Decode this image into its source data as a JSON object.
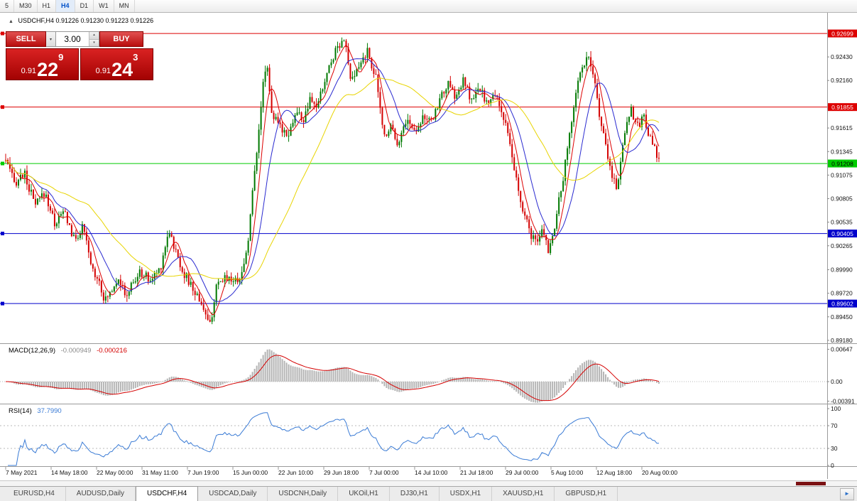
{
  "icons": {
    "chart_icon": "▲",
    "chevron_down": "▾",
    "chevron_up": "▴",
    "tab_scroll_right": "►"
  },
  "toolbar": {
    "timeframes": [
      {
        "label": "5",
        "active": false
      },
      {
        "label": "M30",
        "active": false
      },
      {
        "label": "H1",
        "active": false
      },
      {
        "label": "H4",
        "active": true
      },
      {
        "label": "D1",
        "active": false
      },
      {
        "label": "W1",
        "active": false
      },
      {
        "label": "MN",
        "active": false
      }
    ]
  },
  "chart_header": {
    "title": "USDCHF,H4 0.91226 0.91230 0.91223 0.91226"
  },
  "trade_panel": {
    "sell_label": "SELL",
    "buy_label": "BUY",
    "volume": "3.00",
    "sell_price": {
      "prefix": "0.91",
      "big": "22",
      "sup": "9"
    },
    "buy_price": {
      "prefix": "0.91",
      "big": "24",
      "sup": "3"
    }
  },
  "chart_data": {
    "type": "candlestick",
    "symbol": "USDCHF",
    "timeframe": "H4",
    "quote": {
      "open": "0.91226",
      "high": "0.91230",
      "low": "0.91223",
      "close": "0.91226"
    },
    "price_axis": {
      "range": [
        0.89147,
        0.92936
      ],
      "labels": [
        0.9243,
        0.9216,
        0.91615,
        0.91345,
        0.91075,
        0.90805,
        0.90535,
        0.90265,
        0.8999,
        0.8972,
        0.8945,
        0.8918
      ]
    },
    "hlines": [
      {
        "price": 0.92699,
        "label": "0.92699",
        "color": "#dd0000",
        "text_color": "#ffffff"
      },
      {
        "price": 0.91855,
        "label": "0.91855",
        "color": "#dd0000",
        "text_color": "#ffffff"
      },
      {
        "price": 0.91208,
        "label": "0.91208",
        "color": "#00cc00",
        "text_color": "#000000"
      },
      {
        "price": 0.90405,
        "label": "0.90405",
        "color": "#0000cc",
        "text_color": "#ffffff"
      },
      {
        "price": 0.89602,
        "label": "0.89602",
        "color": "#0000cc",
        "text_color": "#ffffff"
      }
    ],
    "time_labels": [
      "7 May 2021",
      "14 May 18:00",
      "22 May 00:00",
      "31 May 11:00",
      "7 Jun 19:00",
      "15 Jun 00:00",
      "22 Jun 10:00",
      "29 Jun 18:00",
      "7 Jul 00:00",
      "14 Jul 10:00",
      "21 Jul 18:00",
      "29 Jul 00:00",
      "5 Aug 10:00",
      "12 Aug 18:00",
      "20 Aug 00:00"
    ],
    "bar_count": 308,
    "candle_up_color": "#007800",
    "candle_down_color": "#d40000",
    "price_path": [
      [
        0.0,
        0.9125
      ],
      [
        0.013,
        0.9098
      ],
      [
        0.028,
        0.911
      ],
      [
        0.045,
        0.9072
      ],
      [
        0.06,
        0.9088
      ],
      [
        0.075,
        0.9052
      ],
      [
        0.09,
        0.9066
      ],
      [
        0.105,
        0.9032
      ],
      [
        0.118,
        0.9048
      ],
      [
        0.132,
        0.9
      ],
      [
        0.143,
        0.8988
      ],
      [
        0.152,
        0.8962
      ],
      [
        0.163,
        0.8978
      ],
      [
        0.173,
        0.8992
      ],
      [
        0.183,
        0.8966
      ],
      [
        0.193,
        0.8982
      ],
      [
        0.207,
        0.8996
      ],
      [
        0.222,
        0.8986
      ],
      [
        0.237,
        0.9002
      ],
      [
        0.25,
        0.9046
      ],
      [
        0.259,
        0.9022
      ],
      [
        0.272,
        0.8996
      ],
      [
        0.287,
        0.8976
      ],
      [
        0.301,
        0.896
      ],
      [
        0.312,
        0.8932
      ],
      [
        0.322,
        0.8976
      ],
      [
        0.337,
        0.8992
      ],
      [
        0.352,
        0.8986
      ],
      [
        0.363,
        0.8996
      ],
      [
        0.372,
        0.904
      ],
      [
        0.381,
        0.9112
      ],
      [
        0.39,
        0.9182
      ],
      [
        0.399,
        0.9242
      ],
      [
        0.408,
        0.9176
      ],
      [
        0.42,
        0.9162
      ],
      [
        0.433,
        0.9156
      ],
      [
        0.445,
        0.918
      ],
      [
        0.456,
        0.917
      ],
      [
        0.466,
        0.9192
      ],
      [
        0.477,
        0.9186
      ],
      [
        0.491,
        0.9222
      ],
      [
        0.505,
        0.9252
      ],
      [
        0.518,
        0.9266
      ],
      [
        0.529,
        0.9212
      ],
      [
        0.541,
        0.9232
      ],
      [
        0.553,
        0.925
      ],
      [
        0.566,
        0.9222
      ],
      [
        0.579,
        0.9152
      ],
      [
        0.591,
        0.9166
      ],
      [
        0.601,
        0.9142
      ],
      [
        0.613,
        0.9172
      ],
      [
        0.626,
        0.9158
      ],
      [
        0.639,
        0.9176
      ],
      [
        0.651,
        0.9166
      ],
      [
        0.663,
        0.9192
      ],
      [
        0.676,
        0.9212
      ],
      [
        0.689,
        0.9196
      ],
      [
        0.701,
        0.9216
      ],
      [
        0.713,
        0.9192
      ],
      [
        0.726,
        0.9206
      ],
      [
        0.739,
        0.9188
      ],
      [
        0.751,
        0.9202
      ],
      [
        0.766,
        0.9162
      ],
      [
        0.779,
        0.9112
      ],
      [
        0.791,
        0.9066
      ],
      [
        0.803,
        0.9042
      ],
      [
        0.813,
        0.9026
      ],
      [
        0.822,
        0.9046
      ],
      [
        0.831,
        0.9021
      ],
      [
        0.841,
        0.9052
      ],
      [
        0.853,
        0.9102
      ],
      [
        0.863,
        0.9152
      ],
      [
        0.873,
        0.9206
      ],
      [
        0.884,
        0.9236
      ],
      [
        0.893,
        0.924
      ],
      [
        0.903,
        0.9206
      ],
      [
        0.914,
        0.9156
      ],
      [
        0.925,
        0.9116
      ],
      [
        0.936,
        0.9092
      ],
      [
        0.947,
        0.9156
      ],
      [
        0.957,
        0.9186
      ],
      [
        0.967,
        0.9162
      ],
      [
        0.977,
        0.9176
      ],
      [
        0.988,
        0.9146
      ],
      [
        1.0,
        0.9123
      ]
    ],
    "moving_averages": [
      {
        "period": 6,
        "color": "#dd0000"
      },
      {
        "period": 14,
        "color": "#2a2ad0"
      },
      {
        "period": 40,
        "color": "#e8d400"
      }
    ],
    "macd": {
      "name": "MACD(12,26,9)",
      "main_value": "-0.000949",
      "signal_value": "-0.000216",
      "fast": 12,
      "slow": 26,
      "signal": 9,
      "range": [
        -0.00441,
        0.00768
      ],
      "axis_labels": [
        {
          "v": 0.00647,
          "t": "0.00647"
        },
        {
          "v": 0,
          "t": "0.00"
        },
        {
          "v": -0.00391,
          "t": "-0.00391"
        }
      ],
      "hist_color": "#b4b4b4",
      "signal_color": "#d40000"
    },
    "rsi": {
      "name": "RSI(14)",
      "value": "37.7990",
      "period": 14,
      "levels": [
        70,
        30
      ],
      "axis_labels": [
        {
          "v": 100,
          "t": "100"
        },
        {
          "v": 70,
          "t": "70"
        },
        {
          "v": 30,
          "t": "30"
        },
        {
          "v": 0,
          "t": "0"
        }
      ],
      "color": "#3a7bd5"
    }
  },
  "tabs": {
    "items": [
      "EURUSD,H4",
      "AUDUSD,Daily",
      "USDCHF,H4",
      "USDCAD,Daily",
      "USDCNH,Daily",
      "UKOil,H1",
      "DJ30,H1",
      "USDX,H1",
      "XAUUSD,H1",
      "GBPUSD,H1"
    ],
    "active_index": 2
  }
}
